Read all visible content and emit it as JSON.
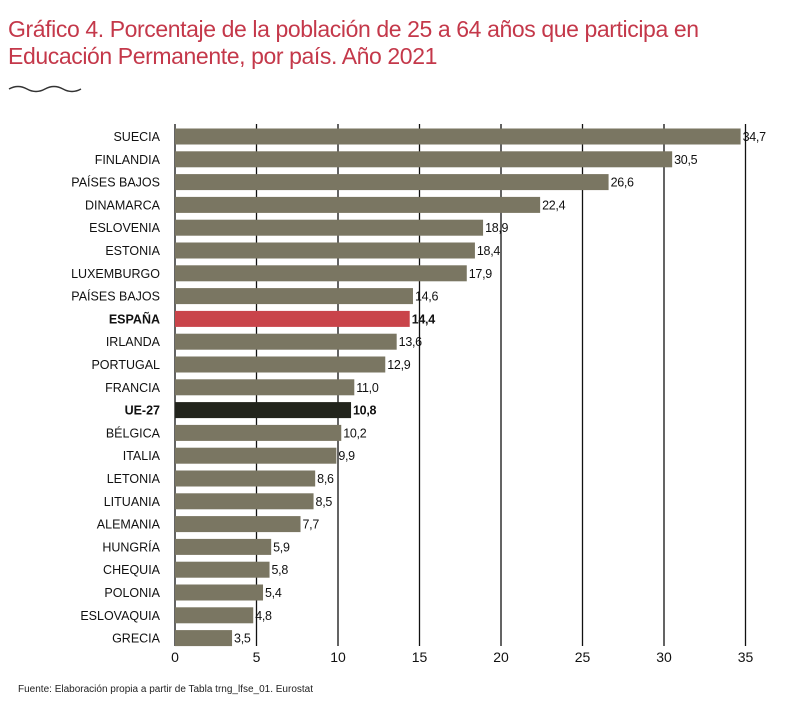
{
  "title": "Gráfico 4. Porcentaje de la población de 25 a 64 años que participa en Educación Permanente, por país. Año 2021",
  "source": "Fuente: Elaboración propia a partir de Tabla trng_lfse_01. Eurostat",
  "colors": {
    "bar": "#7a7662",
    "highlight_spain": "#c9444a",
    "highlight_eu": "#22241c",
    "title": "#c4384a",
    "grid": "#111111"
  },
  "chart_data": {
    "type": "bar",
    "orientation": "horizontal",
    "title": "Gráfico 4. Porcentaje de la población de 25 a 64 años que participa en Educación Permanente, por país. Año 2021",
    "xlabel": "",
    "ylabel": "",
    "xlim": [
      0,
      35
    ],
    "xticks": [
      0,
      5,
      10,
      15,
      20,
      25,
      30,
      35
    ],
    "grid": true,
    "categories": [
      "SUECIA",
      "FINLANDIA",
      "PAÍSES BAJOS",
      "DINAMARCA",
      "ESLOVENIA",
      "ESTONIA",
      "LUXEMBURGO",
      "PAÍSES BAJOS",
      "ESPAÑA",
      "IRLANDA",
      "PORTUGAL",
      "FRANCIA",
      "UE-27",
      "BÉLGICA",
      "ITALIA",
      "LETONIA",
      "LITUANIA",
      "ALEMANIA",
      "HUNGRÍA",
      "CHEQUIA",
      "POLONIA",
      "ESLOVAQUIA",
      "GRECIA"
    ],
    "values": [
      34.7,
      30.5,
      26.6,
      22.4,
      18.9,
      18.4,
      17.9,
      14.6,
      14.4,
      13.6,
      12.9,
      11.0,
      10.8,
      10.2,
      9.9,
      8.6,
      8.5,
      7.7,
      5.9,
      5.8,
      5.4,
      4.8,
      3.5
    ],
    "value_labels": [
      "34,7",
      "30,5",
      "26,6",
      "22,4",
      "18,9",
      "18,4",
      "17,9",
      "14,6",
      "14,4",
      "13,6",
      "12,9",
      "11,0",
      "10,8",
      "10,2",
      "9,9",
      "8,6",
      "8,5",
      "7,7",
      "5,9",
      "5,8",
      "5,4",
      "4,8",
      "3,5"
    ],
    "highlight": {
      "ESPAÑA": "spain",
      "UE-27": "eu"
    }
  }
}
